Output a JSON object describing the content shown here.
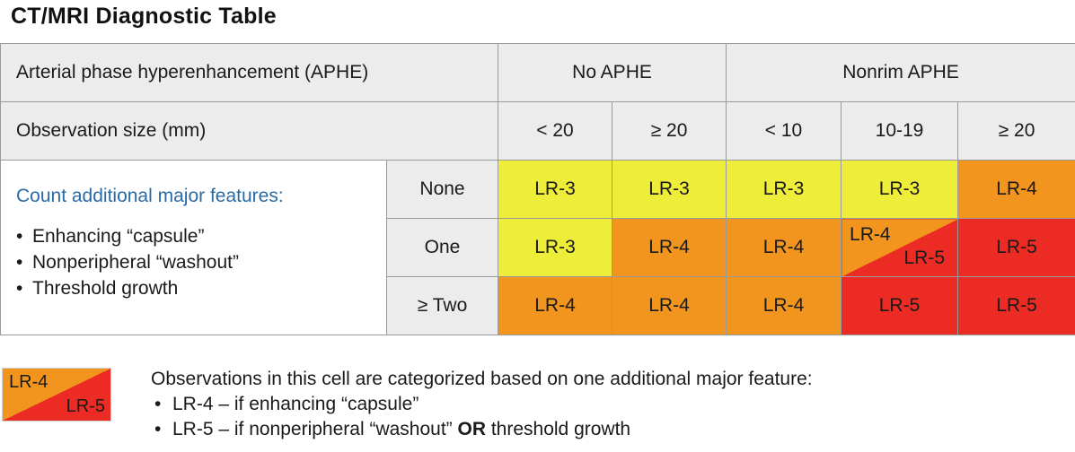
{
  "title": "CT/MRI Diagnostic Table",
  "header": {
    "aphe_label": "Arterial phase hyperenhancement (APHE)",
    "no_aphe": "No APHE",
    "nonrim_aphe": "Nonrim APHE",
    "size_label": "Observation size (mm)",
    "sizes": [
      "< 20",
      "≥ 20",
      "< 10",
      "10-19",
      "≥ 20"
    ]
  },
  "features": {
    "title": "Count additional major features:",
    "bullet": "•",
    "items": [
      "Enhancing “capsule”",
      "Nonperipheral “washout”",
      "Threshold growth"
    ]
  },
  "rows": [
    {
      "count": "None",
      "cells": [
        "LR-3",
        "LR-3",
        "LR-3",
        "LR-3",
        "LR-4"
      ]
    },
    {
      "count": "One",
      "cells": [
        "LR-3",
        "LR-4",
        "LR-4",
        "",
        "LR-5"
      ],
      "split": {
        "top": "LR-4",
        "bottom": "LR-5"
      }
    },
    {
      "count": "≥ Two",
      "cells": [
        "LR-4",
        "LR-4",
        "LR-4",
        "LR-5",
        "LR-5"
      ]
    }
  ],
  "colors": {
    "lr3": "#eded3a",
    "lr4": "#f2951f",
    "lr5": "#ec2b24",
    "header_bg": "#ececec",
    "feature_title": "#2a6aa6"
  },
  "legend": {
    "box_top": "LR-4",
    "box_bottom": "LR-5",
    "description": "Observations in this cell are categorized based on one additional major feature:",
    "bullet": "•",
    "item1": "LR-4 – if enhancing “capsule”",
    "item2_pre": "LR-5 – if nonperipheral “washout” ",
    "item2_bold": "OR",
    "item2_post": " threshold growth"
  }
}
